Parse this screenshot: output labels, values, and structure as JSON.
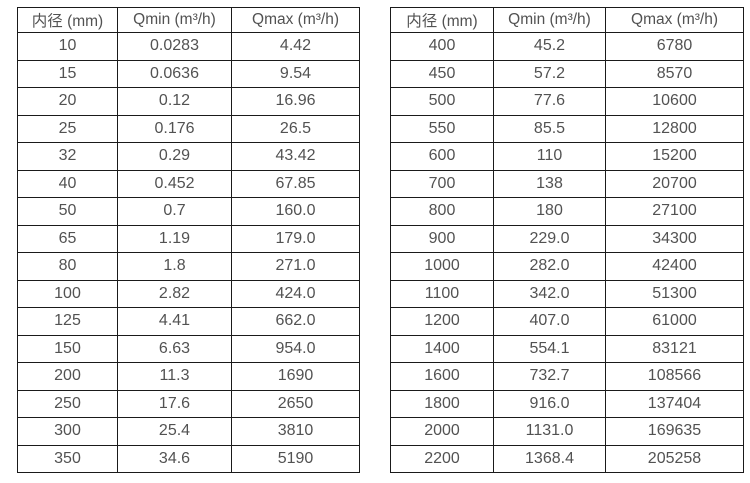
{
  "colors": {
    "background": "#ffffff",
    "border": "#1a1a1a",
    "text": "#525252"
  },
  "chart_data": [
    {
      "type": "table",
      "name": "flow-rate-table-small-diameters",
      "columns": [
        "内径 (mm)",
        "Qmin (m³/h)",
        "Qmax (m³/h)"
      ],
      "rows": [
        [
          "10",
          "0.0283",
          "4.42"
        ],
        [
          "15",
          "0.0636",
          "9.54"
        ],
        [
          "20",
          "0.12",
          "16.96"
        ],
        [
          "25",
          "0.176",
          "26.5"
        ],
        [
          "32",
          "0.29",
          "43.42"
        ],
        [
          "40",
          "0.452",
          "67.85"
        ],
        [
          "50",
          "0.7",
          "160.0"
        ],
        [
          "65",
          "1.19",
          "179.0"
        ],
        [
          "80",
          "1.8",
          "271.0"
        ],
        [
          "100",
          "2.82",
          "424.0"
        ],
        [
          "125",
          "4.41",
          "662.0"
        ],
        [
          "150",
          "6.63",
          "954.0"
        ],
        [
          "200",
          "11.3",
          "1690"
        ],
        [
          "250",
          "17.6",
          "2650"
        ],
        [
          "300",
          "25.4",
          "3810"
        ],
        [
          "350",
          "34.6",
          "5190"
        ]
      ]
    },
    {
      "type": "table",
      "name": "flow-rate-table-large-diameters",
      "columns": [
        "内径 (mm)",
        "Qmin (m³/h)",
        "Qmax (m³/h)"
      ],
      "rows": [
        [
          "400",
          "45.2",
          "6780"
        ],
        [
          "450",
          "57.2",
          "8570"
        ],
        [
          "500",
          "77.6",
          "10600"
        ],
        [
          "550",
          "85.5",
          "12800"
        ],
        [
          "600",
          "110",
          "15200"
        ],
        [
          "700",
          "138",
          "20700"
        ],
        [
          "800",
          "180",
          "27100"
        ],
        [
          "900",
          "229.0",
          "34300"
        ],
        [
          "1000",
          "282.0",
          "42400"
        ],
        [
          "1100",
          "342.0",
          "51300"
        ],
        [
          "1200",
          "407.0",
          "61000"
        ],
        [
          "1400",
          "554.1",
          "83121"
        ],
        [
          "1600",
          "732.7",
          "108566"
        ],
        [
          "1800",
          "916.0",
          "137404"
        ],
        [
          "2000",
          "1131.0",
          "169635"
        ],
        [
          "2200",
          "1368.4",
          "205258"
        ]
      ]
    }
  ]
}
